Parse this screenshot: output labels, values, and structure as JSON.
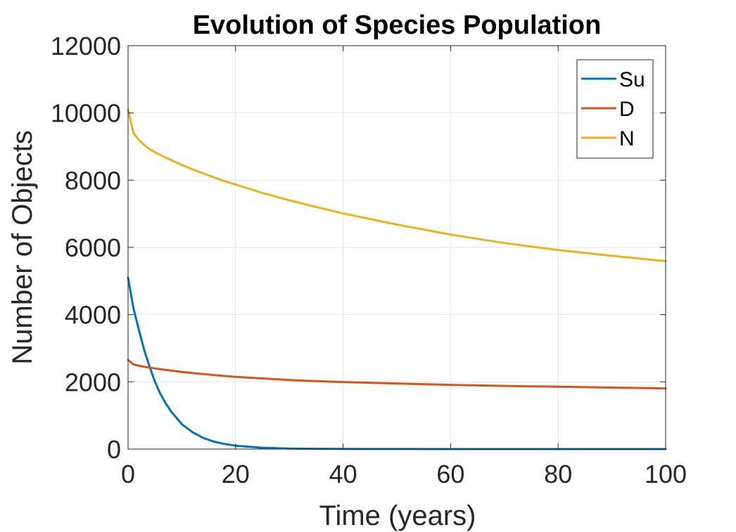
{
  "chart_data": {
    "type": "line",
    "title": "Evolution of Species Population",
    "xlabel": "Time (years)",
    "ylabel": "Number of Objects",
    "xlim": [
      0,
      100
    ],
    "ylim": [
      0,
      12000
    ],
    "xticks": [
      0,
      20,
      40,
      60,
      80,
      100
    ],
    "yticks": [
      0,
      2000,
      4000,
      6000,
      8000,
      10000,
      12000
    ],
    "grid": true,
    "legend_location": "top-right",
    "x": [
      0,
      1,
      2,
      3,
      4,
      5,
      6,
      7,
      8,
      10,
      12,
      14,
      16,
      18,
      20,
      25,
      30,
      35,
      40,
      50,
      60,
      70,
      80,
      90,
      100
    ],
    "series": [
      {
        "name": "Su",
        "color": "#0072BD",
        "values": [
          5100,
          4200,
          3550,
          2950,
          2450,
          2000,
          1650,
          1360,
          1120,
          740,
          500,
          330,
          220,
          150,
          100,
          40,
          15,
          8,
          4,
          2,
          1,
          1,
          0,
          0,
          0
        ]
      },
      {
        "name": "D",
        "color": "#D95319",
        "values": [
          2650,
          2520,
          2480,
          2450,
          2420,
          2400,
          2375,
          2355,
          2335,
          2295,
          2260,
          2230,
          2200,
          2175,
          2150,
          2100,
          2055,
          2020,
          1995,
          1950,
          1910,
          1880,
          1855,
          1830,
          1805
        ]
      },
      {
        "name": "N",
        "color": "#EDB120",
        "values": [
          10100,
          9400,
          9200,
          9050,
          8920,
          8830,
          8750,
          8670,
          8600,
          8450,
          8320,
          8200,
          8080,
          7970,
          7870,
          7620,
          7400,
          7200,
          7010,
          6680,
          6380,
          6130,
          5920,
          5750,
          5590
        ]
      }
    ]
  }
}
